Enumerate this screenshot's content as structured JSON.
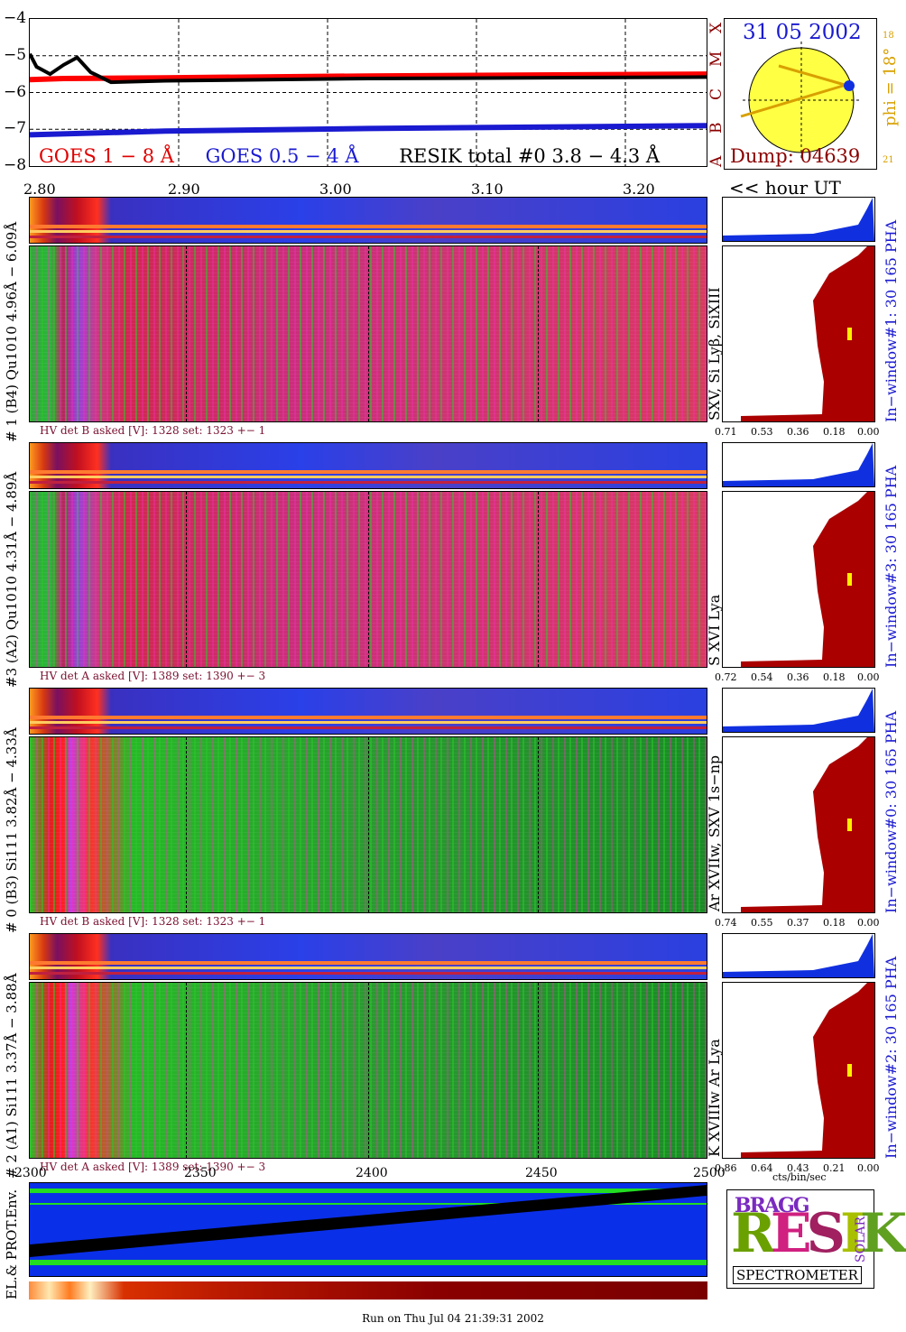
{
  "chart_data": [
    {
      "type": "line",
      "yticks": [
        "−4",
        "−5",
        "−6",
        "−7",
        "−8"
      ],
      "ylim": [
        -8,
        -4
      ],
      "class_letters": [
        "A",
        "B",
        "C",
        "M",
        "X"
      ],
      "series": [
        {
          "name": "GOES 1 − 8 Å",
          "color": "#ff0000",
          "x": [
            0,
            0.05,
            0.2,
            0.5,
            1.0
          ],
          "values": [
            -5.65,
            -5.62,
            -5.6,
            -5.55,
            -5.5
          ]
        },
        {
          "name": "GOES 0.5 − 4 Å",
          "color": "#1a1ad0",
          "x": [
            0,
            0.2,
            0.5,
            1.0
          ],
          "values": [
            -7.15,
            -7.05,
            -6.98,
            -6.9
          ]
        },
        {
          "name": "RESIK total #0",
          "color": "#000000",
          "x": [
            0,
            0.01,
            0.03,
            0.05,
            0.07,
            0.09,
            0.12,
            0.2,
            0.5,
            1.0
          ],
          "values": [
            -4.95,
            -5.3,
            -5.5,
            -5.25,
            -5.05,
            -5.45,
            -5.72,
            -5.68,
            -5.62,
            -5.58
          ]
        }
      ],
      "legend": {
        "goes_long": "GOES 1 − 8 Å",
        "goes_short": "GOES 0.5 − 4 Å",
        "resik": "RESIK total #0  3.8 − 4.3 Å"
      }
    },
    {
      "type": "heatmap",
      "xticks": [
        "2.80",
        "2.90",
        "3.00",
        "3.10",
        "3.20"
      ],
      "time_label": "<< hour UT",
      "panels": [
        {
          "channel_label": "# 1 (B4) Qu1010 4.96Å − 6.09Å",
          "line_label": "SXV, Si Lyβ, SiXIII",
          "hv": "HV det B asked [V]:  1328 set:  1323  +−    1",
          "window_label": "In−window#1:   30 165 PHA",
          "pha_ticks": [
            "0.71",
            "0.53",
            "0.36",
            "0.18",
            "0.00"
          ]
        },
        {
          "channel_label": "#3 (A2) Qu1010  4.31Å − 4.89Å",
          "line_label": "S XVI Lya",
          "hv": "HV det A asked [V]:  1389 set:  1390  +−    3",
          "window_label": "In−window#3:   30 165 PHA",
          "pha_ticks": [
            "0.72",
            "0.54",
            "0.36",
            "0.18",
            "0.00"
          ]
        },
        {
          "channel_label": "# 0 (B3) Si111  3.82Å − 4.33Å",
          "line_label": "Ar XVIIw,  SXV 1s−np",
          "hv": "HV det B asked [V]:  1328 set:  1323  +−    1",
          "window_label": "In−window#0:   30 165 PHA",
          "pha_ticks": [
            "0.74",
            "0.55",
            "0.37",
            "0.18",
            "0.00"
          ]
        },
        {
          "channel_label": "# 2 (A1) Si111  3.37Å − 3.88Å",
          "line_label": "K XVIIIw  Ar Lya",
          "hv": "HV det A asked [V]:  1389 set:  1390  +−    3",
          "window_label": "In−window#2:   30 165 PHA",
          "pha_ticks": [
            "0.86",
            "0.64",
            "0.43",
            "0.21",
            "0.00"
          ]
        }
      ],
      "pha_xlabel": "cts/bin/sec"
    },
    {
      "type": "heatmap",
      "xticks": [
        "2300",
        "2350",
        "2400",
        "2450",
        "2500"
      ],
      "ylabel": "EL.& PROT.Env."
    }
  ],
  "sun_panel": {
    "date": "31 05 2002",
    "dump": "Dump: 04639",
    "phi": "phi = 18°",
    "tick_top": "18",
    "tick_bottom": "21"
  },
  "logo": {
    "title_top": "BRAGG",
    "resik": "RESIK",
    "solar": "SOLAR",
    "spectrometer": "SPECTROMETER"
  },
  "footer": "Run on Thu Jul 04 21:39:31 2002",
  "colors": {
    "goes_long": "#ff0000",
    "goes_short": "#1a1ad0",
    "pha_fill": "#aa0000",
    "pha_top": "#1030e0",
    "sun": "#ffff44"
  }
}
